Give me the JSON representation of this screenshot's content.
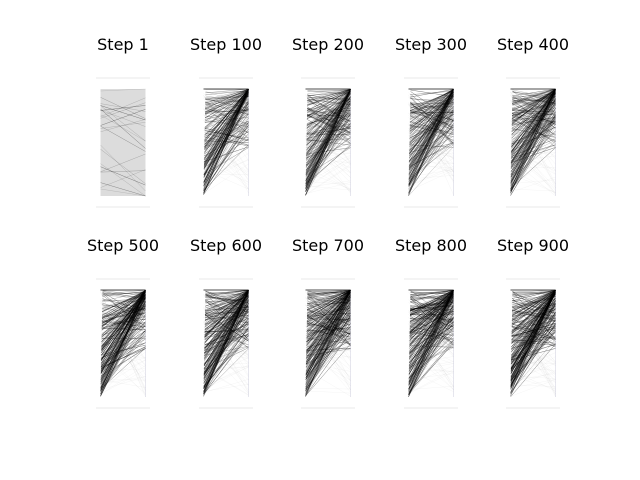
{
  "colors": {
    "background": "#ffffff",
    "line": "#000000",
    "panel_fill": "#dcdcdc",
    "panel_edge": "#e6e6ee",
    "separator": "#e8e8e8",
    "title": "#000000"
  },
  "chart_data": [
    {
      "type": "line",
      "title": "Step 1",
      "step": 1,
      "connections": 24,
      "structure": "random",
      "opacity": 0.35,
      "left_fill_visible": true
    },
    {
      "type": "line",
      "title": "Step 100",
      "step": 100,
      "connections": 190,
      "structure": "converging",
      "opacity": 0.55,
      "left_fill_visible": false
    },
    {
      "type": "line",
      "title": "Step 200",
      "step": 200,
      "connections": 200,
      "structure": "converging",
      "opacity": 0.55,
      "left_fill_visible": false
    },
    {
      "type": "line",
      "title": "Step 300",
      "step": 300,
      "connections": 200,
      "structure": "converging",
      "opacity": 0.55,
      "left_fill_visible": false
    },
    {
      "type": "line",
      "title": "Step 400",
      "step": 400,
      "connections": 210,
      "structure": "converging",
      "opacity": 0.58,
      "left_fill_visible": false
    },
    {
      "type": "line",
      "title": "Step 500",
      "step": 500,
      "connections": 220,
      "structure": "converging",
      "opacity": 0.62,
      "left_fill_visible": false
    },
    {
      "type": "line",
      "title": "Step 600",
      "step": 600,
      "connections": 220,
      "structure": "converging",
      "opacity": 0.62,
      "left_fill_visible": false
    },
    {
      "type": "line",
      "title": "Step 700",
      "step": 700,
      "connections": 230,
      "structure": "converging",
      "opacity": 0.64,
      "left_fill_visible": false
    },
    {
      "type": "line",
      "title": "Step 800",
      "step": 800,
      "connections": 230,
      "structure": "converging",
      "opacity": 0.64,
      "left_fill_visible": false
    },
    {
      "type": "line",
      "title": "Step 900",
      "step": 900,
      "connections": 230,
      "structure": "converging",
      "opacity": 0.64,
      "left_fill_visible": false
    }
  ]
}
